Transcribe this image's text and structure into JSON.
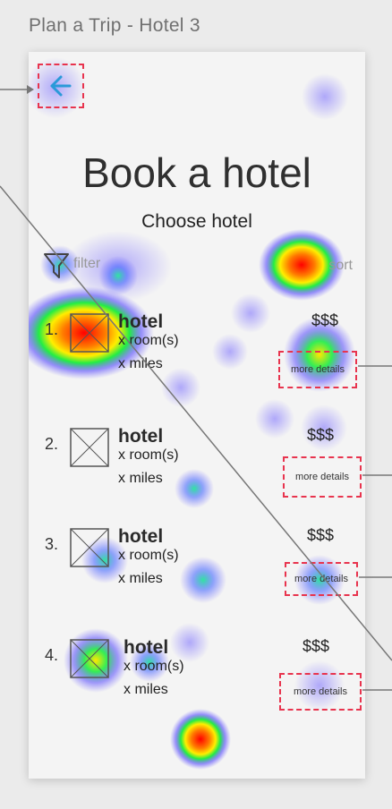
{
  "frame_title": "Plan a Trip - Hotel 3",
  "header": {
    "title": "Book a hotel",
    "subtitle": "Choose hotel"
  },
  "toolbar": {
    "filter_label": "filter",
    "sort_label": "sort"
  },
  "hotels": [
    {
      "number": "1.",
      "name": "hotel",
      "rooms": "x room(s)",
      "distance": "x miles",
      "price": "$$$",
      "details_label": "more details"
    },
    {
      "number": "2.",
      "name": "hotel",
      "rooms": "x room(s)",
      "distance": "x miles",
      "price": "$$$",
      "details_label": "more details"
    },
    {
      "number": "3.",
      "name": "hotel",
      "rooms": "x room(s)",
      "distance": "x miles",
      "price": "$$$",
      "details_label": "more details"
    },
    {
      "number": "4.",
      "name": "hotel",
      "rooms": "x room(s)",
      "distance": "x miles",
      "price": "$$$",
      "details_label": "more details"
    }
  ],
  "colors": {
    "hotspot_border": "#e8344e",
    "back_arrow": "#2a9ad8"
  },
  "icons": {
    "back": "arrow-left-icon",
    "filter": "filter-funnel-icon",
    "photo": "image-placeholder-icon"
  }
}
